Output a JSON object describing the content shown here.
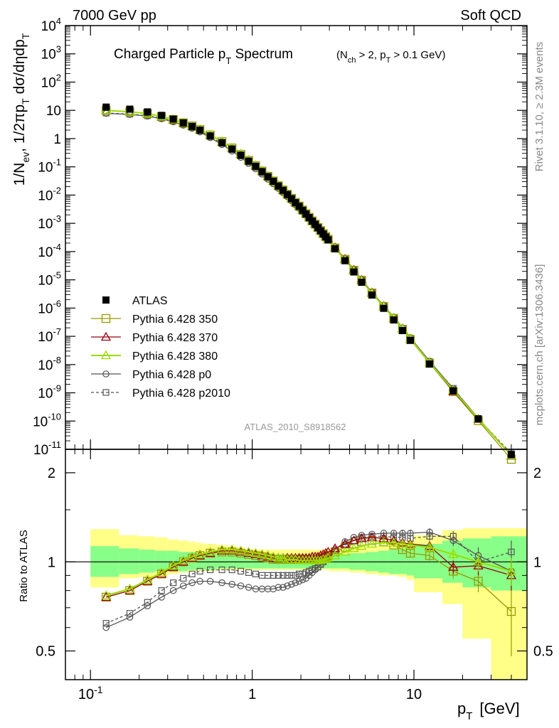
{
  "header": {
    "left": "7000 GeV pp",
    "right": "Soft QCD"
  },
  "side_right_top": "Rivet 3.1.10, ≥ 2.3M events",
  "side_right_bottom": "mcplots.cern.ch [arXiv:1306.3436]",
  "analysis_id": "ATLAS_2010_S8918562",
  "colors": {
    "atlas": "#000000",
    "p350": "#999900",
    "p370": "#990011",
    "p380": "#99dd00",
    "p0": "#555555",
    "p2010": "#555555",
    "band_outer": "#ffff88",
    "band_inner": "#88ff88"
  },
  "chart_data": [
    {
      "type": "line",
      "title_main": "Charged Particle p",
      "title_main_sub": "T",
      "title_main_rest": " Spectrum",
      "title_cond": "(N",
      "title_cond_sub1": "ch",
      "title_cond_mid": " > 2, p",
      "title_cond_sub2": "T",
      "title_cond_rest": " > 0.1 GeV)",
      "ylabel": "1/N_ev 1/2πp_T dσ/dηdp_T",
      "ylabel_parts": [
        "1/N",
        "ev",
        ", 1/2πp",
        "T",
        " dσ/dηdp",
        "T"
      ],
      "x_scale": "log",
      "y_scale": "log",
      "xlim": [
        0.07,
        50
      ],
      "ylim": [
        1e-11,
        10000.0
      ],
      "y_tick_labels": [
        "10-11",
        "10-10",
        "10-9",
        "10-8",
        "10-7",
        "10-6",
        "10-5",
        "10-4",
        "10-3",
        "10-2",
        "10-1",
        "1",
        "10",
        "102",
        "103",
        "104"
      ],
      "y_tick_display": [
        {
          "base": "10",
          "exp": "-11"
        },
        {
          "base": "10",
          "exp": "-10"
        },
        {
          "base": "10",
          "exp": "-9"
        },
        {
          "base": "10",
          "exp": "-8"
        },
        {
          "base": "10",
          "exp": "-7"
        },
        {
          "base": "10",
          "exp": "-6"
        },
        {
          "base": "10",
          "exp": "-5"
        },
        {
          "base": "10",
          "exp": "-4"
        },
        {
          "base": "10",
          "exp": "-3"
        },
        {
          "base": "10",
          "exp": "-2"
        },
        {
          "base": "10",
          "exp": "-1"
        },
        {
          "base": "1",
          "exp": ""
        },
        {
          "base": "10",
          "exp": ""
        },
        {
          "base": "10",
          "exp": "2"
        },
        {
          "base": "10",
          "exp": "3"
        },
        {
          "base": "10",
          "exp": "4"
        }
      ],
      "legend_position": "bottom-left",
      "legend": [
        {
          "name": "ATLAS",
          "style": "filled-square"
        },
        {
          "name": "Pythia 6.428 350",
          "style": "line-open-square"
        },
        {
          "name": "Pythia 6.428 370",
          "style": "line-open-triangle"
        },
        {
          "name": "Pythia 6.428 380",
          "style": "line-open-triangle"
        },
        {
          "name": "Pythia 6.428 p0",
          "style": "line-open-circle"
        },
        {
          "name": "Pythia 6.428 p2010",
          "style": "dashed-open-square"
        }
      ],
      "x": [
        0.125,
        0.175,
        0.225,
        0.275,
        0.325,
        0.375,
        0.425,
        0.475,
        0.55,
        0.65,
        0.75,
        0.85,
        0.95,
        1.05,
        1.15,
        1.25,
        1.35,
        1.45,
        1.55,
        1.65,
        1.75,
        1.85,
        1.95,
        2.05,
        2.15,
        2.25,
        2.35,
        2.45,
        2.55,
        2.65,
        2.75,
        2.85,
        2.95,
        3.25,
        3.75,
        4.25,
        4.75,
        5.5,
        6.5,
        7.5,
        8.5,
        9.5,
        12.5,
        17.5,
        25,
        40
      ],
      "atlas": [
        13,
        11,
        8.8,
        6.6,
        4.9,
        3.6,
        2.7,
        2.0,
        1.25,
        0.72,
        0.43,
        0.26,
        0.16,
        0.105,
        0.068,
        0.045,
        0.031,
        0.021,
        0.0148,
        0.0105,
        0.0075,
        0.0054,
        0.004,
        0.0029,
        0.00215,
        0.0016,
        0.0012,
        0.00092,
        0.0007,
        0.00054,
        0.00042,
        0.00033,
        0.00026,
        0.000125,
        4.75e-05,
        1.9e-05,
        8.2e-06,
        2.9e-06,
        9.8e-07,
        3.8e-07,
        1.6e-07,
        7.2e-08,
        1.05e-08,
        1.18e-09,
        1.2e-10,
        6.5e-12
      ]
    },
    {
      "type": "line",
      "ylabel": "Ratio to ATLAS",
      "x_scale": "log",
      "y_scale": "log",
      "xlim": [
        0.07,
        50
      ],
      "ylim": [
        0.4,
        2.4
      ],
      "x_tick_labels": [
        {
          "base": "10",
          "exp": "-1"
        },
        {
          "base": "1",
          "exp": ""
        },
        {
          "base": "10",
          "exp": ""
        }
      ],
      "y_tick_labels_left": [
        "0.5",
        "1",
        "2"
      ],
      "y_tick_labels_right": [
        "0.5",
        "1",
        "2"
      ],
      "xlabel_main": "p",
      "xlabel_sub": "T",
      "xlabel_unit": "[GeV]",
      "band_edges": [
        0.1,
        0.15,
        0.2,
        0.25,
        0.3,
        0.35,
        0.4,
        0.45,
        0.5,
        0.6,
        0.7,
        0.8,
        0.9,
        1.0,
        1.1,
        1.2,
        1.3,
        1.4,
        1.5,
        1.6,
        1.7,
        1.8,
        1.9,
        2.0,
        2.1,
        2.2,
        2.3,
        2.4,
        2.5,
        2.6,
        2.7,
        2.8,
        2.9,
        3.0,
        3.5,
        4.0,
        4.5,
        5.0,
        6.0,
        7.0,
        8.0,
        9.0,
        10.0,
        15.0,
        20.0,
        30.0,
        50.0
      ],
      "band_outer_lo": [
        0.82,
        0.88,
        0.89,
        0.9,
        0.91,
        0.92,
        0.93,
        0.93,
        0.93,
        0.94,
        0.94,
        0.94,
        0.94,
        0.94,
        0.94,
        0.94,
        0.94,
        0.94,
        0.94,
        0.94,
        0.94,
        0.94,
        0.94,
        0.94,
        0.94,
        0.94,
        0.94,
        0.94,
        0.94,
        0.94,
        0.94,
        0.94,
        0.94,
        0.93,
        0.93,
        0.92,
        0.92,
        0.91,
        0.9,
        0.9,
        0.89,
        0.87,
        0.79,
        0.72,
        0.55,
        0.35
      ],
      "band_outer_hi": [
        1.29,
        1.23,
        1.22,
        1.21,
        1.19,
        1.18,
        1.17,
        1.16,
        1.15,
        1.14,
        1.13,
        1.12,
        1.1,
        1.1,
        1.1,
        1.1,
        1.1,
        1.1,
        1.1,
        1.1,
        1.1,
        1.1,
        1.1,
        1.1,
        1.1,
        1.1,
        1.1,
        1.1,
        1.1,
        1.1,
        1.1,
        1.1,
        1.1,
        1.11,
        1.11,
        1.12,
        1.12,
        1.13,
        1.14,
        1.15,
        1.16,
        1.18,
        1.23,
        1.28,
        1.3,
        1.3
      ],
      "band_inner_lo": [
        0.89,
        0.91,
        0.92,
        0.93,
        0.93,
        0.93,
        0.94,
        0.94,
        0.94,
        0.95,
        0.95,
        0.95,
        0.95,
        0.95,
        0.95,
        0.95,
        0.95,
        0.95,
        0.95,
        0.95,
        0.95,
        0.95,
        0.95,
        0.95,
        0.95,
        0.95,
        0.95,
        0.95,
        0.95,
        0.95,
        0.95,
        0.95,
        0.95,
        0.95,
        0.95,
        0.94,
        0.94,
        0.93,
        0.92,
        0.91,
        0.91,
        0.9,
        0.88,
        0.85,
        0.82,
        0.8
      ],
      "band_inner_hi": [
        1.13,
        1.11,
        1.1,
        1.09,
        1.09,
        1.08,
        1.08,
        1.07,
        1.07,
        1.07,
        1.06,
        1.06,
        1.06,
        1.06,
        1.06,
        1.06,
        1.06,
        1.06,
        1.06,
        1.06,
        1.06,
        1.06,
        1.06,
        1.06,
        1.06,
        1.06,
        1.06,
        1.06,
        1.06,
        1.06,
        1.06,
        1.06,
        1.06,
        1.06,
        1.06,
        1.07,
        1.07,
        1.08,
        1.09,
        1.1,
        1.11,
        1.12,
        1.15,
        1.18,
        1.2,
        1.22
      ],
      "series": [
        {
          "name": "Pythia 6.428 350",
          "values": [
            0.76,
            0.8,
            0.86,
            0.91,
            0.96,
            1.0,
            1.03,
            1.05,
            1.07,
            1.08,
            1.08,
            1.07,
            1.06,
            1.05,
            1.04,
            1.03,
            1.02,
            1.02,
            1.02,
            1.02,
            1.02,
            1.02,
            1.02,
            1.02,
            1.02,
            1.02,
            1.02,
            1.02,
            1.02,
            1.03,
            1.03,
            1.04,
            1.05,
            1.08,
            1.12,
            1.15,
            1.17,
            1.18,
            1.17,
            1.14,
            1.1,
            1.07,
            1.05,
            0.93,
            0.86,
            0.68
          ],
          "errors": [
            0.005,
            0.005,
            0.005,
            0.005,
            0.005,
            0.005,
            0.005,
            0.005,
            0.005,
            0.005,
            0.005,
            0.005,
            0.005,
            0.005,
            0.005,
            0.005,
            0.005,
            0.005,
            0.005,
            0.005,
            0.005,
            0.005,
            0.005,
            0.005,
            0.005,
            0.005,
            0.005,
            0.005,
            0.005,
            0.005,
            0.005,
            0.005,
            0.005,
            0.006,
            0.008,
            0.01,
            0.012,
            0.012,
            0.015,
            0.02,
            0.025,
            0.03,
            0.04,
            0.05,
            0.07,
            0.2
          ]
        },
        {
          "name": "Pythia 6.428 370",
          "values": [
            0.76,
            0.8,
            0.86,
            0.91,
            0.96,
            1.0,
            1.03,
            1.05,
            1.07,
            1.09,
            1.09,
            1.08,
            1.07,
            1.06,
            1.05,
            1.04,
            1.03,
            1.03,
            1.03,
            1.03,
            1.03,
            1.03,
            1.03,
            1.03,
            1.03,
            1.03,
            1.04,
            1.04,
            1.04,
            1.05,
            1.06,
            1.07,
            1.08,
            1.11,
            1.15,
            1.18,
            1.2,
            1.21,
            1.2,
            1.18,
            1.16,
            1.15,
            1.13,
            0.96,
            0.97,
            0.9
          ],
          "errors": [
            0.005,
            0.005,
            0.005,
            0.005,
            0.005,
            0.005,
            0.005,
            0.005,
            0.005,
            0.005,
            0.005,
            0.005,
            0.005,
            0.005,
            0.005,
            0.005,
            0.005,
            0.005,
            0.005,
            0.005,
            0.005,
            0.005,
            0.005,
            0.005,
            0.005,
            0.005,
            0.005,
            0.005,
            0.005,
            0.005,
            0.005,
            0.005,
            0.005,
            0.006,
            0.008,
            0.01,
            0.012,
            0.012,
            0.015,
            0.02,
            0.025,
            0.03,
            0.04,
            0.05,
            0.07,
            0.1
          ]
        },
        {
          "name": "Pythia 6.428 380",
          "values": [
            0.77,
            0.81,
            0.87,
            0.92,
            0.97,
            1.01,
            1.04,
            1.06,
            1.08,
            1.1,
            1.1,
            1.09,
            1.08,
            1.07,
            1.06,
            1.05,
            1.04,
            1.03,
            1.03,
            1.02,
            1.02,
            1.02,
            1.01,
            1.01,
            1.01,
            1.01,
            1.01,
            1.01,
            1.01,
            1.01,
            1.02,
            1.02,
            1.03,
            1.05,
            1.08,
            1.11,
            1.13,
            1.15,
            1.16,
            1.16,
            1.15,
            1.14,
            1.12,
            1.06,
            1.0,
            0.93
          ],
          "errors": [
            0.005,
            0.005,
            0.005,
            0.005,
            0.005,
            0.005,
            0.005,
            0.005,
            0.005,
            0.005,
            0.005,
            0.005,
            0.005,
            0.005,
            0.005,
            0.005,
            0.005,
            0.005,
            0.005,
            0.005,
            0.005,
            0.005,
            0.005,
            0.005,
            0.005,
            0.005,
            0.005,
            0.005,
            0.005,
            0.005,
            0.005,
            0.005,
            0.005,
            0.006,
            0.008,
            0.01,
            0.012,
            0.012,
            0.015,
            0.02,
            0.025,
            0.03,
            0.04,
            0.05,
            0.07,
            0.1
          ]
        },
        {
          "name": "Pythia 6.428 p0",
          "values": [
            0.6,
            0.65,
            0.71,
            0.76,
            0.8,
            0.83,
            0.85,
            0.86,
            0.86,
            0.85,
            0.84,
            0.83,
            0.82,
            0.81,
            0.81,
            0.81,
            0.81,
            0.82,
            0.82,
            0.83,
            0.84,
            0.85,
            0.86,
            0.87,
            0.88,
            0.9,
            0.92,
            0.94,
            0.96,
            0.98,
            1.0,
            1.03,
            1.05,
            1.1,
            1.17,
            1.21,
            1.23,
            1.24,
            1.25,
            1.25,
            1.25,
            1.25,
            1.26,
            1.18,
            1.05,
            0.93
          ],
          "errors": [
            0.005,
            0.005,
            0.005,
            0.005,
            0.005,
            0.005,
            0.005,
            0.005,
            0.005,
            0.005,
            0.005,
            0.005,
            0.005,
            0.005,
            0.005,
            0.005,
            0.005,
            0.005,
            0.005,
            0.005,
            0.005,
            0.005,
            0.005,
            0.005,
            0.005,
            0.005,
            0.005,
            0.005,
            0.005,
            0.005,
            0.005,
            0.005,
            0.005,
            0.006,
            0.008,
            0.01,
            0.012,
            0.012,
            0.015,
            0.02,
            0.025,
            0.03,
            0.04,
            0.05,
            0.07,
            0.1
          ]
        },
        {
          "name": "Pythia 6.428 p2010",
          "dashed": true,
          "values": [
            0.62,
            0.67,
            0.73,
            0.8,
            0.85,
            0.88,
            0.91,
            0.93,
            0.94,
            0.94,
            0.94,
            0.93,
            0.92,
            0.91,
            0.9,
            0.9,
            0.9,
            0.9,
            0.9,
            0.9,
            0.9,
            0.9,
            0.91,
            0.91,
            0.92,
            0.93,
            0.94,
            0.95,
            0.96,
            0.98,
            1.0,
            1.02,
            1.04,
            1.09,
            1.14,
            1.18,
            1.21,
            1.22,
            1.22,
            1.21,
            1.21,
            1.2,
            1.22,
            1.22,
            1.0,
            1.08
          ],
          "errors": [
            0.005,
            0.005,
            0.005,
            0.005,
            0.005,
            0.005,
            0.005,
            0.005,
            0.005,
            0.005,
            0.005,
            0.005,
            0.005,
            0.005,
            0.005,
            0.005,
            0.005,
            0.005,
            0.005,
            0.005,
            0.005,
            0.005,
            0.005,
            0.005,
            0.005,
            0.005,
            0.005,
            0.005,
            0.005,
            0.005,
            0.005,
            0.005,
            0.005,
            0.006,
            0.008,
            0.01,
            0.012,
            0.012,
            0.015,
            0.02,
            0.025,
            0.03,
            0.04,
            0.05,
            0.07,
            0.1
          ]
        }
      ]
    }
  ]
}
